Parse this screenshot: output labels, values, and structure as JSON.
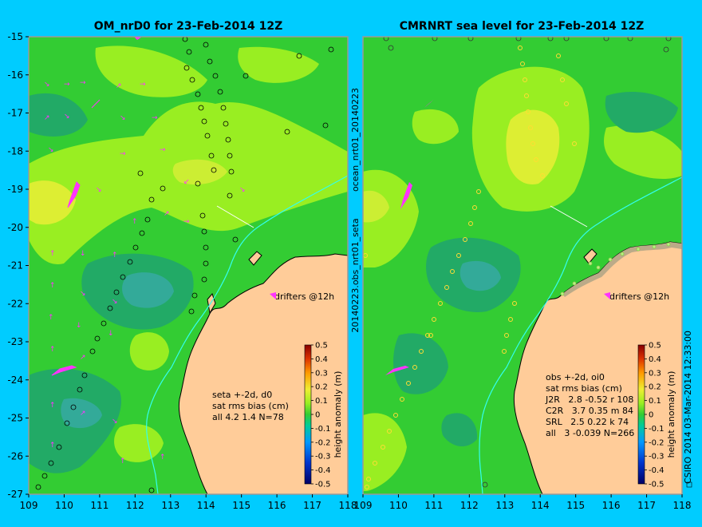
{
  "background_color": "#00ccff",
  "left_panel": {
    "title": "OM_nrD0 for 23-Feb-2014 12Z",
    "stats_lines": [
      "seta +-2d, d0",
      "sat rms bias (cm)",
      "all 4.2 1.4 N=78"
    ]
  },
  "right_panel": {
    "title": "CMRNRT sea level  for 23-Feb-2014 12Z",
    "stats_lines": [
      "obs +-2d, oi0",
      "sat rms bias (cm)",
      "J2R   2.8 -0.52 r 108",
      "C2R   3.7 0.35 m 84",
      "SRL   2.5 0.22 k 74",
      "all   3 -0.039 N=266"
    ]
  },
  "axes": {
    "x_ticks": [
      "109",
      "110",
      "111",
      "112",
      "113",
      "114",
      "115",
      "116",
      "117",
      "118"
    ],
    "y_ticks": [
      "-15",
      "-16",
      "-17",
      "-18",
      "-19",
      "-20",
      "-21",
      "-22",
      "-23",
      "-24",
      "-25",
      "-26",
      "-27"
    ],
    "x_range": [
      109,
      118
    ],
    "y_range": [
      -27,
      -15
    ]
  },
  "colorbar": {
    "label": "height anomaly (m)",
    "ticks": [
      "0.5",
      "0.4",
      "0.3",
      "0.2",
      "0.1",
      "0",
      "-0.1",
      "-0.2",
      "-0.3",
      "-0.4",
      "-0.5"
    ],
    "range": [
      -0.5,
      0.5
    ]
  },
  "drifters_label": "drifters @12h",
  "side_label_top": "ocean_nrt01_20140223",
  "side_label_bottom": "20140223.obs_nrt01_seta",
  "credit": "CSIRO 2014   03-Mar-2014 12:33:00",
  "colors": {
    "land": "#ffcc99",
    "ocean_mid": "#33cc33",
    "ocean_high": "#99ee22",
    "ocean_peak": "#ddee33",
    "ocean_low": "#22aa66",
    "ocean_lowest": "#33aa99",
    "coast_line": "#000000",
    "isobath": "#33ffee",
    "drifter": "#ff33ff"
  }
}
